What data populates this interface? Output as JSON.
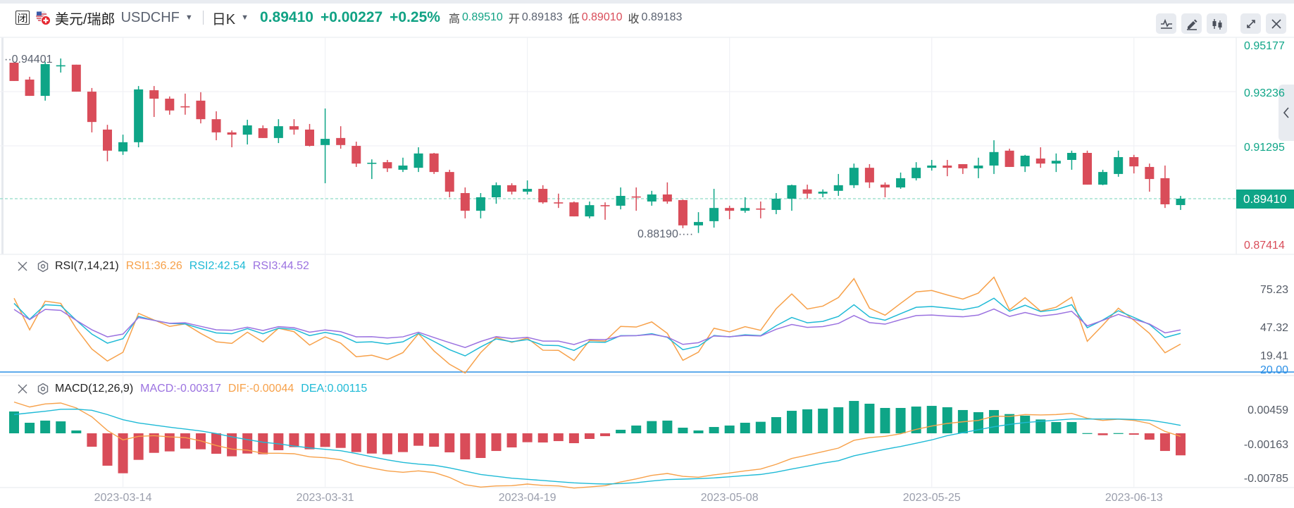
{
  "header": {
    "closed_badge": "闭",
    "pair_name": "美元/瑞郎",
    "symbol": "USDCHF",
    "period": "日K",
    "last_price": "0.89410",
    "change": "+0.00227",
    "change_pct": "+0.25%",
    "high_label": "高",
    "high": "0.89510",
    "open_label": "开",
    "open": "0.89183",
    "low_label": "低",
    "low": "0.89010",
    "close_label": "收",
    "close": "0.89183"
  },
  "toolbar": {
    "icons": [
      "indicator-icon",
      "draw-pencil-icon",
      "candle-style-icon",
      "fullscreen-icon",
      "close-icon"
    ]
  },
  "colors": {
    "up": "#0ea587",
    "down": "#d94c59",
    "rsi1": "#f7a14a",
    "rsi2": "#1fbad6",
    "rsi3": "#9b72e0",
    "rsi_level": "#2b8fe6",
    "dif": "#f7a14a",
    "dea": "#1fbad6"
  },
  "chart_data": [
    {
      "type": "candlestick",
      "title": "美元/瑞郎 USDCHF 日K",
      "ohlc_order": [
        "open",
        "high",
        "low",
        "close"
      ],
      "candles": [
        [
          0.9425,
          0.9425,
          0.936,
          0.936
        ],
        [
          0.9365,
          0.9375,
          0.9307,
          0.9307
        ],
        [
          0.9307,
          0.9428,
          0.929,
          0.942
        ],
        [
          0.9414,
          0.94401,
          0.939,
          0.9416
        ],
        [
          0.9418,
          0.9418,
          0.9322,
          0.9322
        ],
        [
          0.9322,
          0.9335,
          0.9177,
          0.9214
        ],
        [
          0.9187,
          0.9204,
          0.9074,
          0.9112
        ],
        [
          0.9109,
          0.9169,
          0.9097,
          0.9142
        ],
        [
          0.9142,
          0.9342,
          0.9124,
          0.933
        ],
        [
          0.9327,
          0.9342,
          0.9232,
          0.9297
        ],
        [
          0.9297,
          0.9305,
          0.924,
          0.9255
        ],
        [
          0.927,
          0.9315,
          0.924,
          0.9267
        ],
        [
          0.929,
          0.932,
          0.9209,
          0.9224
        ],
        [
          0.9224,
          0.9252,
          0.9149,
          0.9177
        ],
        [
          0.9177,
          0.9184,
          0.9124,
          0.9169
        ],
        [
          0.9169,
          0.9222,
          0.9134,
          0.9202
        ],
        [
          0.9192,
          0.9202,
          0.9157,
          0.9157
        ],
        [
          0.9157,
          0.9224,
          0.9139,
          0.9199
        ],
        [
          0.9199,
          0.9224,
          0.9169,
          0.9187
        ],
        [
          0.9187,
          0.9207,
          0.9127,
          0.9129
        ],
        [
          0.9132,
          0.9262,
          0.8996,
          0.9154
        ],
        [
          0.9157,
          0.9199,
          0.9119,
          0.9132
        ],
        [
          0.9129,
          0.9144,
          0.9054,
          0.9066
        ],
        [
          0.9067,
          0.9081,
          0.9011,
          0.9069
        ],
        [
          0.9071,
          0.9079,
          0.9036,
          0.9049
        ],
        [
          0.9044,
          0.9087,
          0.9036,
          0.9059
        ],
        [
          0.9051,
          0.9124,
          0.9036,
          0.9102
        ],
        [
          0.9102,
          0.9104,
          0.9029,
          0.9036
        ],
        [
          0.9036,
          0.9044,
          0.8946,
          0.8966
        ],
        [
          0.8961,
          0.8981,
          0.8871,
          0.8898
        ],
        [
          0.8898,
          0.8961,
          0.8871,
          0.8946
        ],
        [
          0.8946,
          0.8999,
          0.8923,
          0.8989
        ],
        [
          0.8989,
          0.8996,
          0.8956,
          0.8966
        ],
        [
          0.8966,
          0.9006,
          0.8956,
          0.8976
        ],
        [
          0.8976,
          0.8989,
          0.8923,
          0.8928
        ],
        [
          0.8928,
          0.8959,
          0.8908,
          0.8926
        ],
        [
          0.8928,
          0.8931,
          0.8878,
          0.8878
        ],
        [
          0.8878,
          0.8931,
          0.8871,
          0.8918
        ],
        [
          0.8918,
          0.8928,
          0.8866,
          0.8916
        ],
        [
          0.8916,
          0.8981,
          0.8903,
          0.8951
        ],
        [
          0.8949,
          0.8981,
          0.8898,
          0.8946
        ],
        [
          0.8931,
          0.8969,
          0.8916,
          0.8956
        ],
        [
          0.8956,
          0.8999,
          0.8923,
          0.8931
        ],
        [
          0.8936,
          0.8938,
          0.8836,
          0.8846
        ],
        [
          0.8846,
          0.8893,
          0.8819,
          0.8858
        ],
        [
          0.8861,
          0.8976,
          0.8838,
          0.8908
        ],
        [
          0.8908,
          0.8916,
          0.8868,
          0.8898
        ],
        [
          0.8898,
          0.8946,
          0.8891,
          0.8908
        ],
        [
          0.8906,
          0.8931,
          0.8871,
          0.8903
        ],
        [
          0.8901,
          0.8961,
          0.8886,
          0.8941
        ],
        [
          0.8941,
          0.8991,
          0.8898,
          0.8989
        ],
        [
          0.8974,
          0.8991,
          0.8941,
          0.8959
        ],
        [
          0.8959,
          0.8974,
          0.8946,
          0.8966
        ],
        [
          0.8969,
          0.9029,
          0.8951,
          0.8989
        ],
        [
          0.8989,
          0.9066,
          0.8979,
          0.9051
        ],
        [
          0.9051,
          0.9064,
          0.8979,
          0.8999
        ],
        [
          0.8991,
          0.8999,
          0.8946,
          0.8981
        ],
        [
          0.8981,
          0.9034,
          0.8976,
          0.9014
        ],
        [
          0.9014,
          0.9071,
          0.9006,
          0.9051
        ],
        [
          0.9051,
          0.9079,
          0.9041,
          0.9059
        ],
        [
          0.9059,
          0.9079,
          0.9021,
          0.9051
        ],
        [
          0.9064,
          0.9064,
          0.9029,
          0.9049
        ],
        [
          0.9049,
          0.9087,
          0.9014,
          0.9059
        ],
        [
          0.9059,
          0.9149,
          0.9029,
          0.9107
        ],
        [
          0.9112,
          0.9119,
          0.9054,
          0.9054
        ],
        [
          0.9056,
          0.9097,
          0.9036,
          0.9094
        ],
        [
          0.9084,
          0.9124,
          0.9051,
          0.9066
        ],
        [
          0.9066,
          0.9102,
          0.9036,
          0.9076
        ],
        [
          0.9079,
          0.9112,
          0.9044,
          0.9104
        ],
        [
          0.9104,
          0.9112,
          0.8991,
          0.8991
        ],
        [
          0.8991,
          0.9044,
          0.8989,
          0.9036
        ],
        [
          0.9029,
          0.9112,
          0.9019,
          0.9089
        ],
        [
          0.9089,
          0.9097,
          0.9031,
          0.9056
        ],
        [
          0.9054,
          0.9066,
          0.8966,
          0.9011
        ],
        [
          0.9014,
          0.9059,
          0.8908,
          0.8921
        ],
        [
          0.89183,
          0.8951,
          0.8901,
          0.8941
        ]
      ],
      "y_axis_labels": [
        "0.95177",
        "0.93236",
        "0.91295",
        "0.87414"
      ],
      "current_price_label": "0.89410",
      "current_price": 0.8941,
      "max_annotation": "0.94401",
      "min_annotation": "0.88190",
      "x_ticks": [
        {
          "label": "2023-03-14",
          "index": 7
        },
        {
          "label": "2023-03-31",
          "index": 20
        },
        {
          "label": "2023-04-19",
          "index": 33
        },
        {
          "label": "2023-05-08",
          "index": 46
        },
        {
          "label": "2023-05-25",
          "index": 59
        },
        {
          "label": "2023-06-13",
          "index": 72
        }
      ],
      "grid": true
    },
    {
      "type": "line",
      "title": "RSI(7,14,21)",
      "legend": [
        {
          "name": "RSI1",
          "text": "RSI1:36.26"
        },
        {
          "name": "RSI2",
          "text": "RSI2:42.54"
        },
        {
          "name": "RSI3",
          "text": "RSI3:44.52"
        }
      ],
      "series": [
        {
          "name": "RSI1",
          "values": [
            63.0,
            44.6,
            61.3,
            60.0,
            45.3,
            33.4,
            26.4,
            31.5,
            54.2,
            50.3,
            46.6,
            48.0,
            42.5,
            37.6,
            36.7,
            43.2,
            37.5,
            45.5,
            43.5,
            35.7,
            40.5,
            36.8,
            28.9,
            29.8,
            27.2,
            31.3,
            42.3,
            32.3,
            24.5,
            19.41,
            31.3,
            40.2,
            37.3,
            39.8,
            32.7,
            32.6,
            26.7,
            38.4,
            38.0,
            46.6,
            46.2,
            49.2,
            42.5,
            26.8,
            31.6,
            45.5,
            43.4,
            46.4,
            44.3,
            56.9,
            65.5,
            56.7,
            58.4,
            63.4,
            74.4,
            57.2,
            53.1,
            60.0,
            66.7,
            67.5,
            64.9,
            62.5,
            66.0,
            75.23,
            56.2,
            63.3,
            55.5,
            57.8,
            63.6,
            37.9,
            47.3,
            57.2,
            50.1,
            42.5,
            31.2,
            36.26
          ]
        },
        {
          "name": "RSI2",
          "values": [
            60.0,
            50.7,
            59.2,
            58.7,
            50.1,
            42.1,
            36.8,
            39.4,
            52.4,
            50.1,
            48.3,
            48.0,
            45.3,
            42.8,
            42.3,
            45.3,
            42.3,
            45.5,
            44.9,
            41.2,
            43.1,
            41.4,
            37.3,
            37.6,
            36.3,
            37.6,
            42.5,
            37.8,
            33.0,
            29.4,
            34.6,
            39.3,
            37.6,
            38.9,
            35.6,
            35.4,
            32.6,
            37.5,
            37.3,
            41.2,
            41.2,
            42.3,
            40.2,
            33.0,
            35.0,
            41.3,
            40.5,
            41.7,
            41.2,
            47.0,
            51.8,
            48.7,
            49.5,
            52.4,
            59.2,
            52.1,
            50.2,
            54.0,
            57.7,
            58.2,
            57.3,
            56.3,
            58.0,
            63.0,
            55.4,
            58.9,
            55.2,
            56.3,
            59.2,
            45.8,
            50.3,
            55.7,
            51.8,
            47.7,
            40.1,
            42.54
          ]
        },
        {
          "name": "RSI3",
          "values": [
            56.5,
            50.5,
            56.5,
            55.9,
            50.1,
            44.6,
            40.5,
            42.1,
            51.7,
            50.1,
            48.4,
            48.7,
            46.6,
            44.6,
            44.3,
            46.1,
            44.2,
            46.4,
            45.8,
            43.2,
            44.5,
            43.5,
            40.5,
            40.6,
            39.8,
            40.5,
            43.2,
            40.1,
            37.1,
            34.3,
            37.8,
            40.6,
            39.5,
            40.2,
            38.0,
            38.0,
            36.0,
            39.0,
            38.9,
            41.0,
            41.2,
            41.9,
            40.4,
            36.1,
            37.1,
            41.0,
            40.6,
            41.3,
            41.0,
            44.9,
            47.7,
            46.0,
            46.5,
            48.3,
            52.9,
            48.8,
            47.9,
            50.5,
            52.9,
            53.2,
            52.6,
            52.2,
            53.2,
            56.7,
            52.4,
            54.7,
            52.6,
            53.6,
            55.4,
            46.9,
            50.1,
            53.6,
            50.7,
            48.0,
            42.8,
            44.52
          ]
        }
      ],
      "reference_line": {
        "value": 20.0,
        "label": "20.00"
      },
      "y_axis_labels": [
        "75.23",
        "47.32",
        "19.41"
      ]
    },
    {
      "type": "bar+line",
      "title": "MACD(12,26,9)",
      "legend": [
        {
          "name": "MACD",
          "text": "MACD:-0.00317"
        },
        {
          "name": "DIF",
          "text": "DIF:-0.00044"
        },
        {
          "name": "DEA",
          "text": "DEA:0.00115"
        }
      ],
      "macd": [
        0.00314,
        0.00152,
        0.00183,
        0.00172,
        0.00041,
        -0.00193,
        -0.00466,
        -0.00575,
        -0.00382,
        -0.00281,
        -0.0026,
        -0.0022,
        -0.0023,
        -0.00294,
        -0.00331,
        -0.00291,
        -0.00301,
        -0.00243,
        -0.00199,
        -0.0023,
        -0.00196,
        -0.0021,
        -0.0027,
        -0.00291,
        -0.00301,
        -0.0027,
        -0.00179,
        -0.00193,
        -0.00274,
        -0.00375,
        -0.00355,
        -0.00254,
        -0.00203,
        -0.00128,
        -0.00132,
        -0.00112,
        -0.00142,
        -0.00081,
        -0.00041,
        0.00051,
        0.00112,
        0.00176,
        0.00183,
        0.00081,
        0.00041,
        0.00091,
        0.00112,
        0.00152,
        0.00166,
        0.00233,
        0.00324,
        0.00345,
        0.00355,
        0.00375,
        0.00466,
        0.00426,
        0.00365,
        0.00365,
        0.00385,
        0.00395,
        0.00375,
        0.00335,
        0.00304,
        0.00335,
        0.00277,
        0.00254,
        0.00199,
        0.00162,
        0.00162,
        3e-05,
        -0.00027,
        3e-05,
        -0.0002,
        -0.00091,
        -0.00254,
        -0.00317
      ],
      "dif": [
        0.0045,
        0.00379,
        0.00423,
        0.00436,
        0.00365,
        0.00237,
        0.00041,
        -0.00095,
        -0.00044,
        -0.00034,
        -0.00051,
        -0.00061,
        -0.00108,
        -0.00176,
        -0.00226,
        -0.00243,
        -0.00287,
        -0.00287,
        -0.00294,
        -0.00338,
        -0.00352,
        -0.00379,
        -0.00453,
        -0.005,
        -0.00541,
        -0.00561,
        -0.00541,
        -0.00564,
        -0.00635,
        -0.0074,
        -0.00774,
        -0.00757,
        -0.00754,
        -0.0073,
        -0.0075,
        -0.00757,
        -0.00788,
        -0.00771,
        -0.00754,
        -0.007,
        -0.00656,
        -0.00605,
        -0.00578,
        -0.00619,
        -0.00632,
        -0.00598,
        -0.00571,
        -0.00541,
        -0.00514,
        -0.00446,
        -0.00362,
        -0.00314,
        -0.00264,
        -0.00213,
        -0.00101,
        -0.00061,
        -0.00044,
        -7e-05,
        0.00057,
        0.00105,
        0.00142,
        0.00166,
        0.00186,
        0.00247,
        0.00243,
        0.0027,
        0.00264,
        0.0027,
        0.00287,
        0.00216,
        0.00186,
        0.00203,
        0.00186,
        0.00142,
        0.00027,
        -0.00044
      ],
      "dea": [
        0.0027,
        0.00294,
        0.00318,
        0.00345,
        0.00348,
        0.00331,
        0.0027,
        0.00196,
        0.00149,
        0.00118,
        0.00088,
        0.00061,
        0.00034,
        -3e-05,
        -0.00051,
        -0.00091,
        -0.00128,
        -0.00152,
        -0.00183,
        -0.0021,
        -0.0023,
        -0.0025,
        -0.00291,
        -0.00338,
        -0.00382,
        -0.00419,
        -0.00443,
        -0.0046,
        -0.00497,
        -0.00544,
        -0.00592,
        -0.00619,
        -0.00646,
        -0.00662,
        -0.00679,
        -0.00696,
        -0.00713,
        -0.00723,
        -0.0073,
        -0.00723,
        -0.0071,
        -0.00686,
        -0.00666,
        -0.00659,
        -0.00652,
        -0.00642,
        -0.00625,
        -0.00608,
        -0.00592,
        -0.00558,
        -0.00514,
        -0.00473,
        -0.00429,
        -0.00395,
        -0.00324,
        -0.00277,
        -0.0023,
        -0.00189,
        -0.00142,
        -0.00095,
        -0.00034,
        0.0001,
        0.00051,
        0.00095,
        0.00128,
        0.00155,
        0.00172,
        0.00189,
        0.00206,
        0.00206,
        0.00206,
        0.00206,
        0.00199,
        0.00189,
        0.00155,
        0.00115
      ],
      "y_axis_labels": [
        "0.00459",
        "-0.00163",
        "-0.00785"
      ]
    }
  ]
}
